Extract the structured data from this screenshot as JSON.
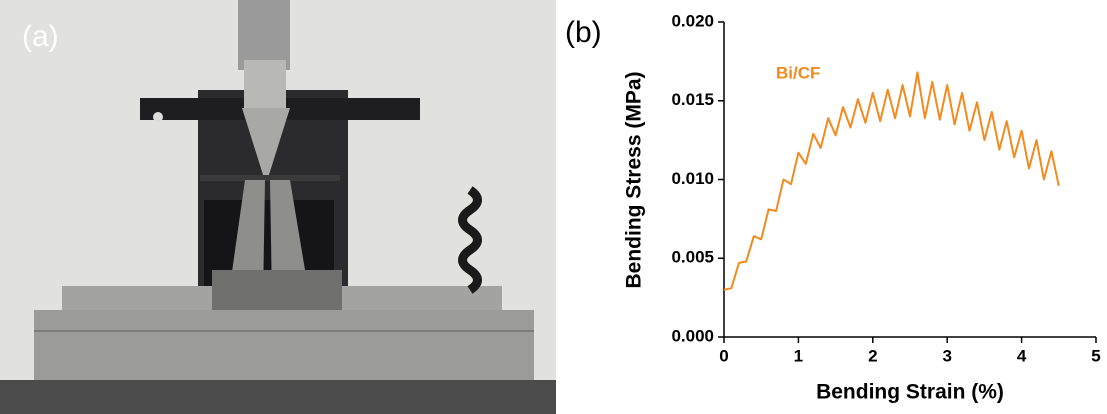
{
  "photo": {
    "label": "(a)"
  },
  "chart_data": {
    "type": "line",
    "panel_label": "(b)",
    "x_label": "Bending Strain (%)",
    "y_label": "Bending Stress (MPa)",
    "x": [
      0,
      0.1,
      0.2,
      0.3,
      0.4,
      0.5,
      0.6,
      0.7,
      0.8,
      0.9,
      1.0,
      1.1,
      1.2,
      1.3,
      1.4,
      1.5,
      1.6,
      1.7,
      1.8,
      1.9,
      2.0,
      2.1,
      2.2,
      2.3,
      2.4,
      2.5,
      2.6,
      2.7,
      2.8,
      2.9,
      3.0,
      3.1,
      3.2,
      3.3,
      3.4,
      3.5,
      3.6,
      3.7,
      3.8,
      3.9,
      4.0,
      4.1,
      4.2,
      4.3,
      4.4,
      4.5
    ],
    "series": [
      {
        "name": "Bi/CF",
        "color": "#f28a1e",
        "values": [
          0.003,
          0.0031,
          0.0047,
          0.0048,
          0.0064,
          0.0062,
          0.0081,
          0.008,
          0.01,
          0.0097,
          0.0117,
          0.011,
          0.0129,
          0.012,
          0.0139,
          0.0128,
          0.0146,
          0.0133,
          0.0151,
          0.0136,
          0.0155,
          0.0137,
          0.0157,
          0.0139,
          0.016,
          0.014,
          0.0168,
          0.0139,
          0.0162,
          0.0138,
          0.016,
          0.0135,
          0.0155,
          0.0131,
          0.0149,
          0.0125,
          0.0143,
          0.0119,
          0.0137,
          0.0114,
          0.0131,
          0.0107,
          0.0125,
          0.01,
          0.0118,
          0.0096
        ]
      }
    ],
    "xlim": [
      0,
      5
    ],
    "xticks": [
      0,
      1,
      2,
      3,
      4,
      5
    ],
    "ylim": [
      0,
      0.02
    ],
    "yticks": [
      {
        "value": 0,
        "label": "0.000"
      },
      {
        "value": 0.005,
        "label": "0.005"
      },
      {
        "value": 0.01,
        "label": "0.010"
      },
      {
        "value": 0.015,
        "label": "0.015"
      },
      {
        "value": 0.02,
        "label": "0.020"
      }
    ],
    "legend": "top-left"
  }
}
